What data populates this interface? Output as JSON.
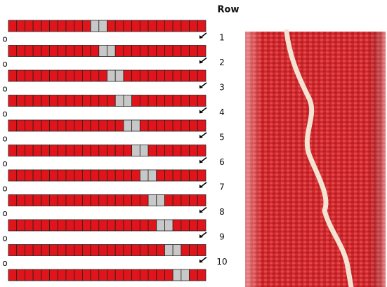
{
  "header": "Row",
  "row_labels": [
    "1",
    "2",
    "3",
    "4",
    "5",
    "6",
    "7",
    "8",
    "9",
    "10"
  ],
  "start_marker": "o"
}
